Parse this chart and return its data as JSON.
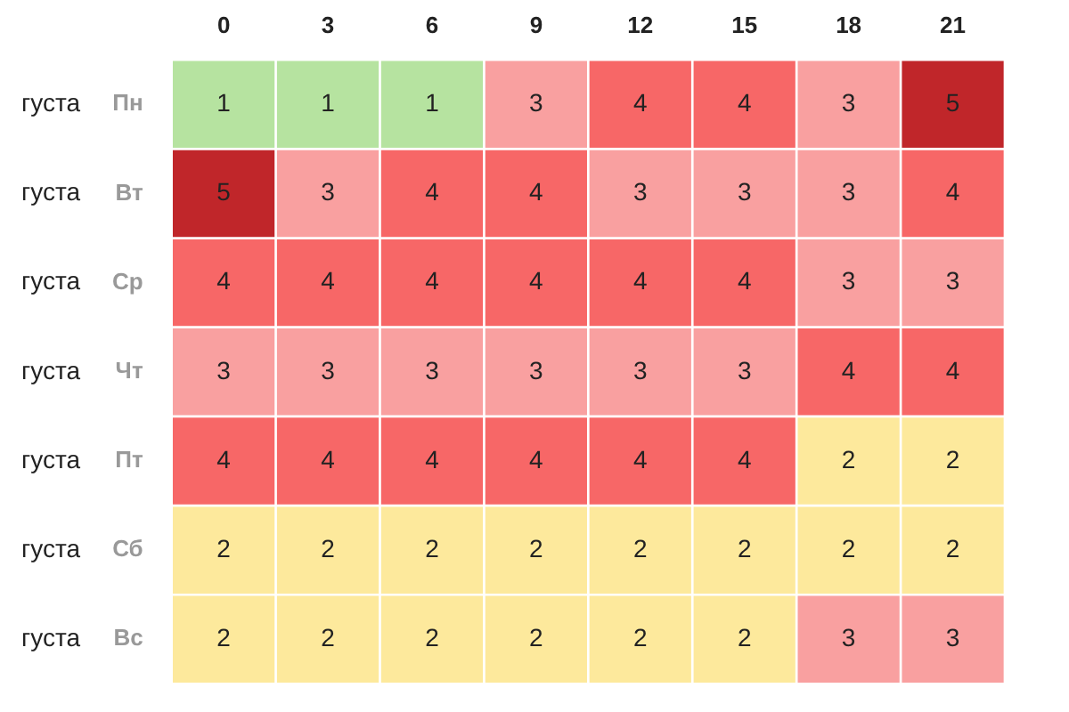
{
  "chart_data": {
    "type": "heatmap",
    "categories": [
      "0",
      "3",
      "6",
      "9",
      "12",
      "15",
      "18",
      "21"
    ],
    "y_categories": [
      "густа",
      "густа",
      "густа",
      "густа",
      "густа",
      "густа",
      "густа"
    ],
    "y2_categories": [
      "Пн",
      "Вт",
      "Ср",
      "Чт",
      "Пт",
      "Сб",
      "Вс"
    ],
    "cells": [
      [
        1,
        1,
        1,
        3,
        4,
        4,
        3,
        5
      ],
      [
        5,
        3,
        4,
        4,
        3,
        3,
        3,
        4
      ],
      [
        4,
        4,
        4,
        4,
        4,
        4,
        3,
        3
      ],
      [
        3,
        3,
        3,
        3,
        3,
        3,
        4,
        4
      ],
      [
        4,
        4,
        4,
        4,
        4,
        4,
        2,
        2
      ],
      [
        2,
        2,
        2,
        2,
        2,
        2,
        2,
        2
      ],
      [
        2,
        2,
        2,
        2,
        2,
        2,
        3,
        3
      ]
    ],
    "colors": [
      [
        "#b6e3a0",
        "#b6e3a0",
        "#b6e3a0",
        "#f9a0a0",
        "#f76767",
        "#f76767",
        "#f9a0a0",
        "#c0262a"
      ],
      [
        "#c0262a",
        "#f9a0a0",
        "#f76767",
        "#f76767",
        "#f9a0a0",
        "#f9a0a0",
        "#f9a0a0",
        "#f76767"
      ],
      [
        "#f76767",
        "#f76767",
        "#f76767",
        "#f76767",
        "#f76767",
        "#f76767",
        "#f9a0a0",
        "#f9a0a0"
      ],
      [
        "#f9a0a0",
        "#f9a0a0",
        "#f9a0a0",
        "#f9a0a0",
        "#f9a0a0",
        "#f9a0a0",
        "#f76767",
        "#f76767"
      ],
      [
        "#f76767",
        "#f76767",
        "#f76767",
        "#f76767",
        "#f76767",
        "#f76767",
        "#fde99c",
        "#fde99c"
      ],
      [
        "#fde99c",
        "#fde99c",
        "#fde99c",
        "#fde99c",
        "#fde99c",
        "#fde99c",
        "#fde99c",
        "#fde99c"
      ],
      [
        "#fde99c",
        "#fde99c",
        "#fde99c",
        "#fde99c",
        "#fde99c",
        "#fde99c",
        "#f9a0a0",
        "#f9a0a0"
      ]
    ],
    "data_labels": true
  }
}
